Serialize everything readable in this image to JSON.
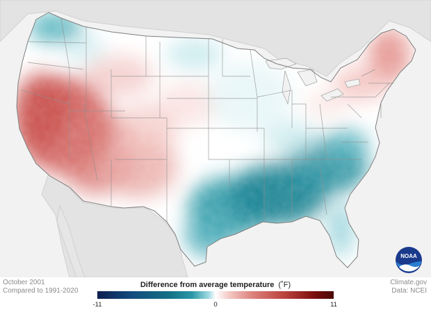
{
  "map": {
    "period": "October 2001",
    "baseline": "Compared to 1991-2020",
    "credit": "Climate.gov",
    "source": "Data: NCEI",
    "logo_text": "NOAA",
    "colors": {
      "background": "#f2f2f2",
      "land_neutral": "#ffffff",
      "state_borders": "#8f8f8f",
      "warm": "#d9706b",
      "warm_strong": "#b8413c",
      "cool": "#3ea8b3",
      "cool_strong": "#15798a"
    },
    "legend": {
      "title": "Difference from average temperature",
      "unit": "(˚F)",
      "min_label": "-11",
      "mid_label": "0",
      "max_label": "11",
      "range": [
        -11,
        11
      ]
    }
  }
}
